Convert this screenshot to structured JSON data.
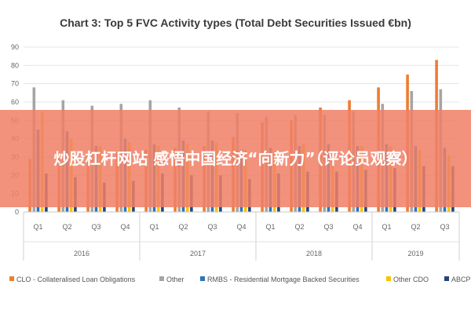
{
  "overlay_text": "炒股杠杆网站 感悟中国经济“向新力”（评论员观察）",
  "chart_data": {
    "type": "bar",
    "title": "Chart 3: Top 5 FVC Activity types (Total Debt Securities Issued €bn)",
    "xlabel": "",
    "ylabel": "",
    "ylim": [
      0,
      90
    ],
    "yticks": [
      0,
      10,
      20,
      30,
      40,
      50,
      60,
      70,
      80,
      90
    ],
    "grid": true,
    "legend_position": "bottom",
    "categories": [
      "Q1",
      "Q2",
      "Q3",
      "Q4",
      "Q1",
      "Q2",
      "Q3",
      "Q4",
      "Q1",
      "Q2",
      "Q3",
      "Q4",
      "Q1",
      "Q2",
      "Q3"
    ],
    "groups": [
      {
        "label": "2016",
        "count": 4
      },
      {
        "label": "2017",
        "count": 4
      },
      {
        "label": "2018",
        "count": 4
      },
      {
        "label": "2019",
        "count": 3
      }
    ],
    "series": [
      {
        "name": "CLO - Collateralised Loan Obligations",
        "color": "#ed7d31",
        "values": [
          29,
          31,
          32,
          33,
          34,
          35,
          36,
          41,
          49,
          50,
          57,
          61,
          68,
          75,
          83
        ]
      },
      {
        "name": "Other",
        "color": "#a5a5a5",
        "values": [
          68,
          61,
          58,
          59,
          61,
          57,
          55,
          54,
          52,
          53,
          53,
          55,
          59,
          66,
          67
        ]
      },
      {
        "name": "RMBS - Residential Mortgage Backed Securities",
        "color": "#2e75b6",
        "values": [
          45,
          44,
          36,
          40,
          37,
          39,
          39,
          34,
          35,
          36,
          37,
          36,
          37,
          36,
          35
        ]
      },
      {
        "name": "Other CDO",
        "color": "#ffc000",
        "values": [
          55,
          40,
          36,
          38,
          36,
          37,
          38,
          34,
          33,
          37,
          33,
          36,
          36,
          34,
          31
        ]
      },
      {
        "name": "ABCP",
        "color": "#264478",
        "values": [
          21,
          19,
          16,
          17,
          21,
          20,
          20,
          18,
          21,
          22,
          22,
          23,
          24,
          25,
          25
        ]
      }
    ]
  }
}
